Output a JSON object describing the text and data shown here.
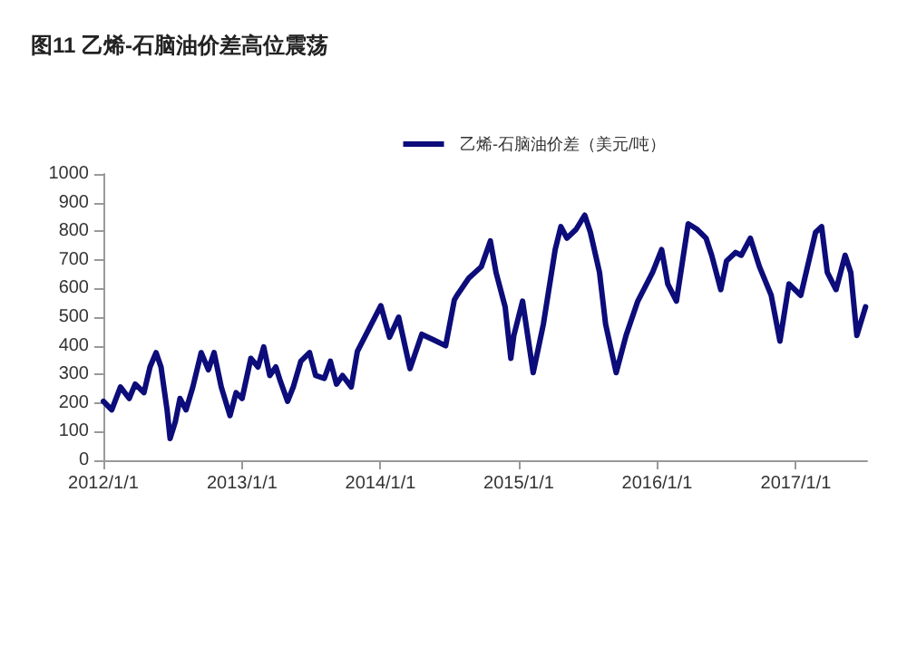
{
  "chart_data": {
    "type": "line",
    "title": "图11 乙烯-石脑油价差高位震荡",
    "x": [
      "2012-01-01",
      "2012-01-23",
      "2012-02-15",
      "2012-03-09",
      "2012-03-25",
      "2012-04-17",
      "2012-05-03",
      "2012-05-19",
      "2012-06-01",
      "2012-06-17",
      "2012-06-25",
      "2012-07-09",
      "2012-07-21",
      "2012-08-06",
      "2012-08-24",
      "2012-09-15",
      "2012-10-04",
      "2012-10-19",
      "2012-11-07",
      "2012-11-30",
      "2012-12-16",
      "2013-01-01",
      "2013-01-24",
      "2013-02-12",
      "2013-02-27",
      "2013-03-15",
      "2013-03-31",
      "2013-04-12",
      "2013-05-01",
      "2013-05-16",
      "2013-06-05",
      "2013-06-28",
      "2013-07-14",
      "2013-08-06",
      "2013-08-22",
      "2013-09-07",
      "2013-09-23",
      "2013-10-16",
      "2013-11-01",
      "2013-12-02",
      "2014-01-02",
      "2014-01-25",
      "2014-02-18",
      "2014-03-20",
      "2014-04-20",
      "2014-05-22",
      "2014-06-22",
      "2014-07-15",
      "2014-07-22",
      "2014-08-22",
      "2014-09-24",
      "2014-10-18",
      "2014-11-02",
      "2014-11-26",
      "2014-12-11",
      "2014-12-19",
      "2015-01-11",
      "2015-02-08",
      "2015-03-07",
      "2015-04-07",
      "2015-04-22",
      "2015-05-08",
      "2015-06-01",
      "2015-06-24",
      "2015-07-09",
      "2015-08-02",
      "2015-08-18",
      "2015-09-15",
      "2015-10-11",
      "2015-11-11",
      "2015-12-20",
      "2016-01-13",
      "2016-01-29",
      "2016-02-21",
      "2016-03-23",
      "2016-04-16",
      "2016-05-09",
      "2016-05-24",
      "2016-06-17",
      "2016-07-02",
      "2016-07-26",
      "2016-08-10",
      "2016-09-03",
      "2016-09-27",
      "2016-10-28",
      "2016-11-20",
      "2016-12-14",
      "2017-01-14",
      "2017-02-22",
      "2017-03-10",
      "2017-03-25",
      "2017-04-17",
      "2017-05-11",
      "2017-05-26",
      "2017-06-11",
      "2017-07-04"
    ],
    "series": [
      {
        "name": "乙烯-石脑油价差（美元/吨）",
        "color": "#0c0c7a",
        "values": [
          206,
          176,
          256,
          216,
          266,
          236,
          326,
          376,
          326,
          176,
          76,
          136,
          216,
          176,
          256,
          376,
          316,
          376,
          256,
          156,
          236,
          216,
          356,
          326,
          396,
          296,
          326,
          276,
          206,
          256,
          346,
          376,
          296,
          286,
          346,
          266,
          296,
          256,
          380,
          460,
          540,
          430,
          500,
          320,
          440,
          420,
          400,
          560,
          576,
          636,
          676,
          766,
          656,
          536,
          356,
          436,
          556,
          306,
          476,
          736,
          816,
          776,
          806,
          856,
          796,
          656,
          476,
          306,
          436,
          556,
          656,
          736,
          616,
          556,
          826,
          806,
          776,
          716,
          596,
          696,
          726,
          716,
          776,
          676,
          576,
          416,
          616,
          576,
          796,
          816,
          656,
          596,
          716,
          656,
          436,
          536
        ]
      }
    ],
    "xlim": [
      "2012-01-01",
      "2017-07-08"
    ],
    "xticks": [
      {
        "value": "2012-01-01",
        "label": "2012/1/1"
      },
      {
        "value": "2013-01-01",
        "label": "2013/1/1"
      },
      {
        "value": "2014-01-01",
        "label": "2014/1/1"
      },
      {
        "value": "2015-01-01",
        "label": "2015/1/1"
      },
      {
        "value": "2016-01-01",
        "label": "2016/1/1"
      },
      {
        "value": "2017-01-01",
        "label": "2017/1/1"
      }
    ],
    "ylim": [
      0,
      1000
    ],
    "yticks": [
      0,
      100,
      200,
      300,
      400,
      500,
      600,
      700,
      800,
      900,
      1000
    ],
    "legend": "top right",
    "grid": false,
    "marker": "none",
    "line_style": "solid"
  }
}
